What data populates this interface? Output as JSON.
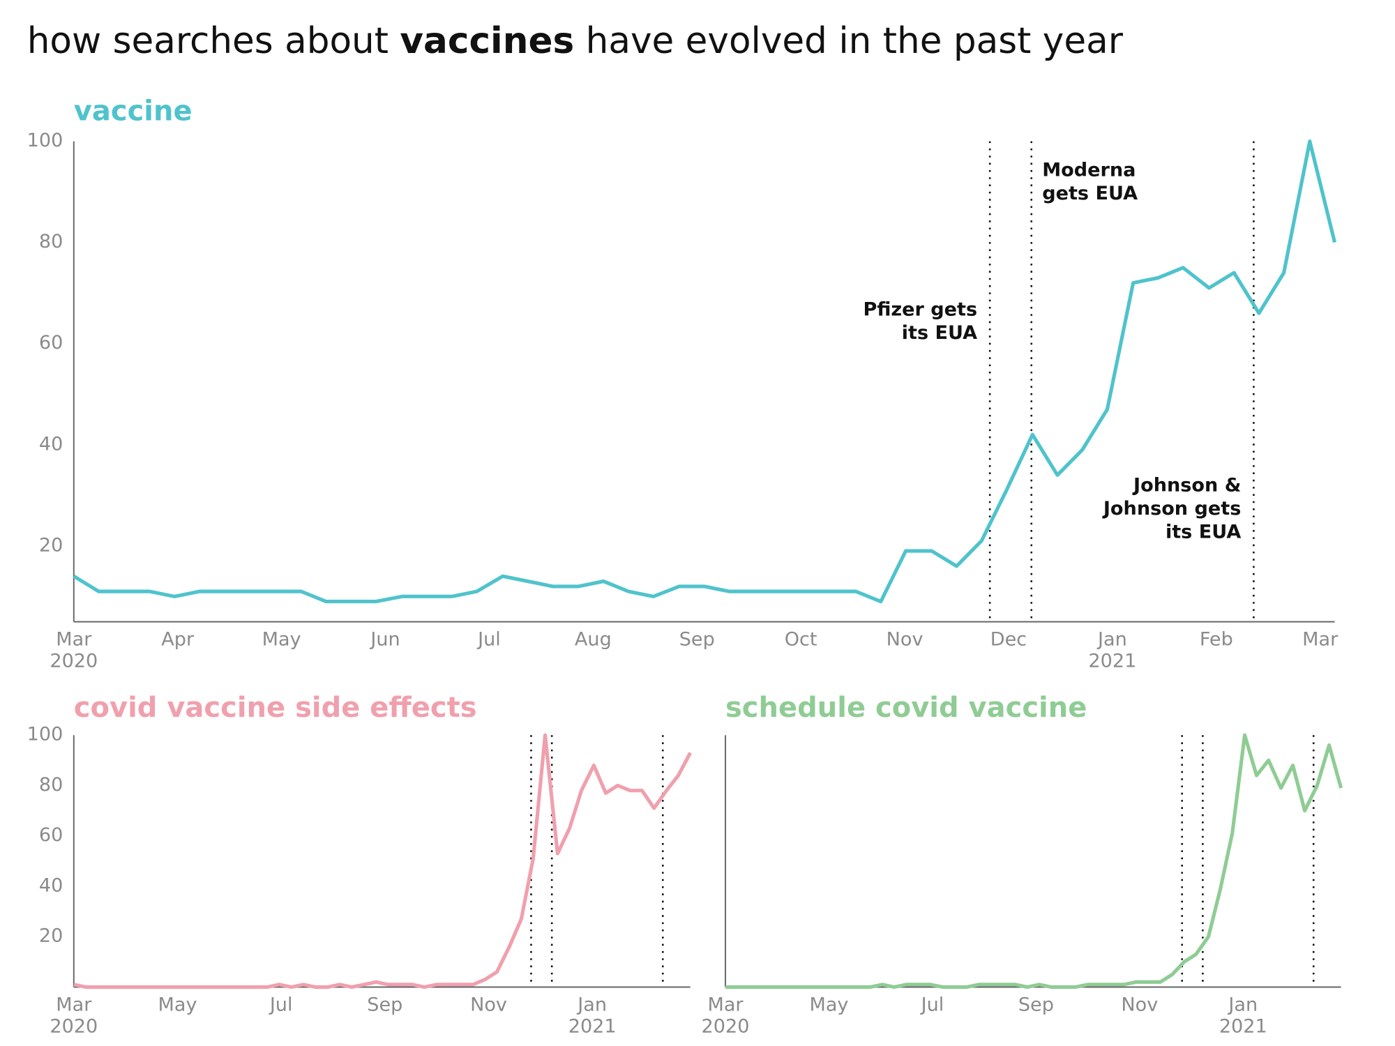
{
  "title": [
    "how searches about",
    "vaccines",
    "have evolved in the past year"
  ],
  "chart_data": [
    {
      "type": "line",
      "title": "vaccine",
      "color": "#4fc3cc",
      "x": [
        0,
        0.24,
        0.49,
        0.73,
        0.97,
        1.21,
        1.46,
        1.7,
        1.94,
        2.19,
        2.43,
        2.67,
        2.91,
        3.16,
        3.4,
        3.64,
        3.88,
        4.13,
        4.37,
        4.61,
        4.86,
        5.1,
        5.34,
        5.58,
        5.83,
        6.07,
        6.31,
        6.56,
        6.8,
        7.04,
        7.28,
        7.53,
        7.77,
        8.01,
        8.26,
        8.5,
        8.74,
        8.98,
        9.23,
        9.47,
        9.71,
        9.95,
        10.2,
        10.44,
        10.68,
        10.93,
        11.17,
        11.41,
        11.65,
        11.9,
        12.14
      ],
      "values": [
        14,
        11,
        11,
        11,
        10,
        11,
        11,
        11,
        11,
        11,
        9,
        9,
        9,
        10,
        10,
        10,
        11,
        14,
        13,
        12,
        12,
        13,
        11,
        10,
        12,
        12,
        11,
        11,
        11,
        11,
        11,
        11,
        9,
        19,
        19,
        16,
        21,
        31,
        42,
        34,
        39,
        47,
        72,
        73,
        75,
        71,
        74,
        66,
        74,
        100,
        80
      ],
      "xlim": [
        0,
        12.14
      ],
      "xticks": [
        {
          "value": 0,
          "label": "Mar 2020"
        },
        {
          "value": 1,
          "label": "Apr"
        },
        {
          "value": 2,
          "label": "May"
        },
        {
          "value": 3,
          "label": "Jun"
        },
        {
          "value": 4,
          "label": "Jul"
        },
        {
          "value": 5,
          "label": "Aug"
        },
        {
          "value": 6,
          "label": "Sep"
        },
        {
          "value": 7,
          "label": "Oct"
        },
        {
          "value": 8,
          "label": "Nov"
        },
        {
          "value": 9,
          "label": "Dec"
        },
        {
          "value": 10,
          "label": "Jan 2021"
        },
        {
          "value": 11,
          "label": "Feb"
        },
        {
          "value": 12,
          "label": "Mar"
        }
      ],
      "ylim": [
        5,
        100
      ],
      "yticks": [
        20,
        40,
        60,
        80,
        100
      ],
      "annotations": [
        {
          "x": 8.82,
          "text": [
            "Pfizer gets",
            "its EUA"
          ]
        },
        {
          "x": 9.22,
          "text": [
            "Moderna",
            "gets EUA"
          ]
        },
        {
          "x": 11.36,
          "text": [
            "Johnson &",
            "Johnson gets",
            "its EUA"
          ]
        }
      ]
    },
    {
      "type": "line",
      "title": "covid vaccine side effects",
      "color": "#f0a0ad",
      "x": [
        0,
        0.23,
        0.47,
        0.7,
        0.93,
        1.17,
        1.4,
        1.63,
        1.87,
        2.1,
        2.33,
        2.57,
        2.8,
        3.03,
        3.26,
        3.5,
        3.73,
        3.96,
        4.2,
        4.43,
        4.66,
        4.9,
        5.13,
        5.36,
        5.6,
        5.83,
        6.06,
        6.3,
        6.53,
        6.76,
        7.0,
        7.23,
        7.46,
        7.7,
        7.93,
        8.16,
        8.4,
        8.63,
        8.86,
        9.09,
        9.33,
        9.56,
        9.79,
        10.03,
        10.26,
        10.49,
        10.73,
        10.96,
        11.19,
        11.43,
        11.66,
        11.89
      ],
      "values": [
        1,
        0,
        0,
        0,
        0,
        0,
        0,
        0,
        0,
        0,
        0,
        0,
        0,
        0,
        0,
        0,
        0,
        1,
        0,
        1,
        0,
        0,
        1,
        0,
        1,
        2,
        1,
        1,
        1,
        0,
        1,
        1,
        1,
        1,
        3,
        6,
        16,
        27,
        51,
        100,
        53,
        63,
        78,
        88,
        77,
        80,
        78,
        78,
        71,
        78,
        84,
        93
      ],
      "xlim": [
        0,
        11.89
      ],
      "xticks": [
        {
          "value": 0,
          "label": "Mar 2020"
        },
        {
          "value": 2,
          "label": "May"
        },
        {
          "value": 4,
          "label": "Jul"
        },
        {
          "value": 6,
          "label": "Sep"
        },
        {
          "value": 8,
          "label": "Nov"
        },
        {
          "value": 10,
          "label": "Jan 2021"
        }
      ],
      "ylim": [
        0,
        100
      ],
      "yticks": [
        20,
        40,
        60,
        80,
        100
      ],
      "events": [
        8.82,
        9.22,
        11.36
      ]
    },
    {
      "type": "line",
      "title": "schedule covid vaccine",
      "color": "#8fcc94",
      "x": [
        0,
        0.23,
        0.47,
        0.7,
        0.93,
        1.17,
        1.4,
        1.63,
        1.87,
        2.1,
        2.33,
        2.57,
        2.8,
        3.03,
        3.26,
        3.5,
        3.73,
        3.96,
        4.2,
        4.43,
        4.66,
        4.9,
        5.13,
        5.36,
        5.6,
        5.83,
        6.06,
        6.3,
        6.53,
        6.76,
        7.0,
        7.23,
        7.46,
        7.7,
        7.93,
        8.16,
        8.4,
        8.63,
        8.86,
        9.09,
        9.33,
        9.56,
        9.79,
        10.03,
        10.26,
        10.49,
        10.73,
        10.96,
        11.19,
        11.43,
        11.66,
        11.89
      ],
      "values": [
        0,
        0,
        0,
        0,
        0,
        0,
        0,
        0,
        0,
        0,
        0,
        0,
        0,
        1,
        0,
        1,
        1,
        1,
        0,
        0,
        0,
        1,
        1,
        1,
        1,
        0,
        1,
        0,
        0,
        0,
        1,
        1,
        1,
        1,
        2,
        2,
        2,
        5,
        10,
        13,
        20,
        39,
        61,
        100,
        84,
        90,
        79,
        88,
        70,
        80,
        96,
        79
      ],
      "xlim": [
        0,
        11.89
      ],
      "xticks": [
        {
          "value": 0,
          "label": "Mar 2020"
        },
        {
          "value": 2,
          "label": "May"
        },
        {
          "value": 4,
          "label": "Jul"
        },
        {
          "value": 6,
          "label": "Sep"
        },
        {
          "value": 8,
          "label": "Nov"
        },
        {
          "value": 10,
          "label": "Jan 2021"
        }
      ],
      "ylim": [
        0,
        100
      ],
      "events": [
        8.82,
        9.22,
        11.36
      ]
    }
  ]
}
